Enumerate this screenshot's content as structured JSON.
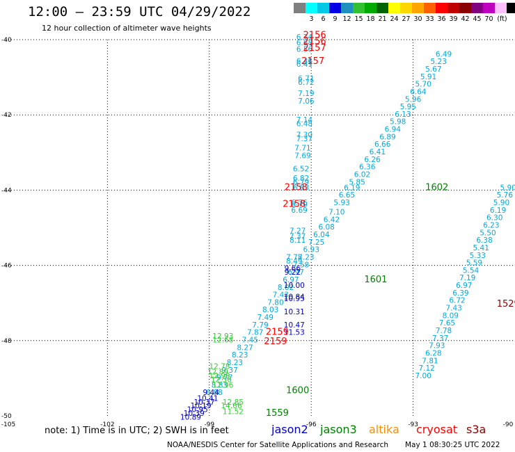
{
  "header": {
    "title": "12:00 – 23:59 UTC 04/29/2022",
    "subtitle": "12 hour collection of altimeter wave heights"
  },
  "legend": {
    "colors": [
      "#7f7f7f",
      "#00ffff",
      "#00c8e6",
      "#0000e6",
      "#1e90c0",
      "#30c030",
      "#00aa00",
      "#006400",
      "#ffff00",
      "#ffd700",
      "#ffa500",
      "#ff6000",
      "#ff0000",
      "#c00000",
      "#8b0000",
      "#800080",
      "#c000c0",
      "#ffc0ff",
      "#000000"
    ],
    "labels": [
      "3",
      "6",
      "9",
      "12",
      "15",
      "18",
      "21",
      "24",
      "27",
      "30",
      "33",
      "36",
      "39",
      "42",
      "45",
      "70"
    ],
    "unit": "(ft)"
  },
  "note_text": "note:  1) Time is in UTC;  2) SWH is in feet",
  "missions": [
    {
      "name": "jason2",
      "color": "#0000cc"
    },
    {
      "name": "jason3",
      "color": "#008000"
    },
    {
      "name": "altika",
      "color": "#ff8c00"
    },
    {
      "name": "cryosat",
      "color": "#ff0000"
    },
    {
      "name": "s3a",
      "color": "#8b0000"
    }
  ],
  "footer": {
    "credit": "NOAA/NESDIS Center for Satellite Applications and Research",
    "timestamp": "May  1 08:30:25 UTC 2022"
  },
  "chart_data": {
    "type": "scatter",
    "xlim": [
      -105,
      -90
    ],
    "ylim": [
      -50,
      -40
    ],
    "x_ticks": [
      "-105",
      "-102",
      "-99",
      "-96",
      "-93",
      "-90"
    ],
    "y_ticks": [
      "-40",
      "-42",
      "-44",
      "-46",
      "-48",
      "-50"
    ],
    "grid": true,
    "series": [
      {
        "color": "#00aadd",
        "points": [
          {
            "x": -96.2,
            "y": -40.0,
            "label": "6.74"
          },
          {
            "x": -96.2,
            "y": -40.15,
            "label": "6.68"
          },
          {
            "x": -96.2,
            "y": -40.32,
            "label": "6.56"
          },
          {
            "x": -96.2,
            "y": -40.64,
            "label": "6.46"
          },
          {
            "x": -96.2,
            "y": -40.72,
            "label": "6.41"
          },
          {
            "x": -96.15,
            "y": -41.1,
            "label": "6.71"
          },
          {
            "x": -96.15,
            "y": -41.2,
            "label": "6.72"
          },
          {
            "x": -96.15,
            "y": -41.5,
            "label": "7.19"
          },
          {
            "x": -96.15,
            "y": -41.7,
            "label": "7.06"
          },
          {
            "x": -96.2,
            "y": -42.2,
            "label": "7.14"
          },
          {
            "x": -96.2,
            "y": -42.3,
            "label": "6.48"
          },
          {
            "x": -96.2,
            "y": -42.6,
            "label": "7.30"
          },
          {
            "x": -96.2,
            "y": -42.7,
            "label": "7.37"
          },
          {
            "x": -96.25,
            "y": -42.95,
            "label": "7.71"
          },
          {
            "x": -96.25,
            "y": -43.15,
            "label": "7.69"
          },
          {
            "x": -96.3,
            "y": -43.5,
            "label": "6.52"
          },
          {
            "x": -96.3,
            "y": -43.75,
            "label": "6.82"
          },
          {
            "x": -96.3,
            "y": -43.85,
            "label": "6.79"
          },
          {
            "x": -96.3,
            "y": -44.0,
            "label": "6.83"
          },
          {
            "x": -96.35,
            "y": -44.4,
            "label": "6.76"
          },
          {
            "x": -96.35,
            "y": -44.45,
            "label": "6.70"
          },
          {
            "x": -96.35,
            "y": -44.6,
            "label": "6.69"
          },
          {
            "x": -96.4,
            "y": -45.15,
            "label": "7.27"
          },
          {
            "x": -96.4,
            "y": -45.3,
            "label": "7.37"
          },
          {
            "x": -96.4,
            "y": -45.4,
            "label": "8.11"
          },
          {
            "x": -96.5,
            "y": -45.85,
            "label": "7.78"
          },
          {
            "x": -96.5,
            "y": -45.95,
            "label": "8.49"
          },
          {
            "x": -95.1,
            "y": -44.4,
            "label": "5.93"
          },
          {
            "x": -94.95,
            "y": -44.2,
            "label": "6.65"
          },
          {
            "x": -94.8,
            "y": -44.0,
            "label": "6.19"
          },
          {
            "x": -94.65,
            "y": -43.85,
            "label": "5.85"
          },
          {
            "x": -94.5,
            "y": -43.65,
            "label": "6.02"
          },
          {
            "x": -94.35,
            "y": -43.45,
            "label": "6.36"
          },
          {
            "x": -94.2,
            "y": -43.25,
            "label": "6.26"
          },
          {
            "x": -94.05,
            "y": -43.05,
            "label": "6.41"
          },
          {
            "x": -93.9,
            "y": -42.85,
            "label": "6.66"
          },
          {
            "x": -93.75,
            "y": -42.65,
            "label": "6.89"
          },
          {
            "x": -93.6,
            "y": -42.45,
            "label": "6.94"
          },
          {
            "x": -93.45,
            "y": -42.25,
            "label": "5.98"
          },
          {
            "x": -93.3,
            "y": -42.05,
            "label": "6.13"
          },
          {
            "x": -93.15,
            "y": -41.85,
            "label": "5.95"
          },
          {
            "x": -93.0,
            "y": -41.65,
            "label": "5.96"
          },
          {
            "x": -92.85,
            "y": -41.45,
            "label": "6.64"
          },
          {
            "x": -92.7,
            "y": -41.25,
            "label": "5.70"
          },
          {
            "x": -92.55,
            "y": -41.05,
            "label": "5.91"
          },
          {
            "x": -92.4,
            "y": -40.85,
            "label": "5.67"
          },
          {
            "x": -92.25,
            "y": -40.65,
            "label": "5.23"
          },
          {
            "x": -92.1,
            "y": -40.45,
            "label": "6.49"
          },
          {
            "x": -95.25,
            "y": -44.65,
            "label": "7.10"
          },
          {
            "x": -95.4,
            "y": -44.85,
            "label": "6.42"
          },
          {
            "x": -95.55,
            "y": -45.05,
            "label": "6.08"
          },
          {
            "x": -95.7,
            "y": -45.25,
            "label": "6.04"
          },
          {
            "x": -95.85,
            "y": -45.45,
            "label": "7.25"
          },
          {
            "x": -96.0,
            "y": -45.65,
            "label": "6.93"
          },
          {
            "x": -96.15,
            "y": -45.85,
            "label": "7.23"
          },
          {
            "x": -96.3,
            "y": -46.05,
            "label": "7.58"
          },
          {
            "x": -96.45,
            "y": -46.25,
            "label": "6.97"
          },
          {
            "x": -96.6,
            "y": -46.45,
            "label": "6.97"
          },
          {
            "x": -96.75,
            "y": -46.65,
            "label": "8.02"
          },
          {
            "x": -96.9,
            "y": -46.85,
            "label": "7.43"
          },
          {
            "x": -97.05,
            "y": -47.05,
            "label": "7.80"
          },
          {
            "x": -97.2,
            "y": -47.25,
            "label": "8.03"
          },
          {
            "x": -97.35,
            "y": -47.45,
            "label": "7.49"
          },
          {
            "x": -97.5,
            "y": -47.65,
            "label": "7.79"
          },
          {
            "x": -97.65,
            "y": -47.85,
            "label": "7.87"
          },
          {
            "x": -97.8,
            "y": -48.05,
            "label": "7.45"
          },
          {
            "x": -97.95,
            "y": -48.25,
            "label": "8.27"
          },
          {
            "x": -98.1,
            "y": -48.45,
            "label": "8.23"
          },
          {
            "x": -98.25,
            "y": -48.65,
            "label": "8.23"
          },
          {
            "x": -98.4,
            "y": -48.85,
            "label": "9.37"
          },
          {
            "x": -98.55,
            "y": -49.05,
            "label": "9.77"
          },
          {
            "x": -98.7,
            "y": -49.25,
            "label": "8.83"
          },
          {
            "x": -98.85,
            "y": -49.45,
            "label": "8.88"
          },
          {
            "x": -90.2,
            "y": -44.0,
            "label": "5.90"
          },
          {
            "x": -90.3,
            "y": -44.2,
            "label": "5.76"
          },
          {
            "x": -90.4,
            "y": -44.4,
            "label": "5.90"
          },
          {
            "x": -90.5,
            "y": -44.6,
            "label": "6.19"
          },
          {
            "x": -90.6,
            "y": -44.8,
            "label": "6.30"
          },
          {
            "x": -90.7,
            "y": -45.0,
            "label": "6.23"
          },
          {
            "x": -90.8,
            "y": -45.2,
            "label": "5.50"
          },
          {
            "x": -90.9,
            "y": -45.4,
            "label": "6.38"
          },
          {
            "x": -91.0,
            "y": -45.6,
            "label": "5.41"
          },
          {
            "x": -91.1,
            "y": -45.8,
            "label": "5.33"
          },
          {
            "x": -91.2,
            "y": -46.0,
            "label": "5.59"
          },
          {
            "x": -91.3,
            "y": -46.2,
            "label": "5.54"
          },
          {
            "x": -91.4,
            "y": -46.4,
            "label": "7.19"
          },
          {
            "x": -91.5,
            "y": -46.6,
            "label": "6.97"
          },
          {
            "x": -91.6,
            "y": -46.8,
            "label": "6.39"
          },
          {
            "x": -91.7,
            "y": -47.0,
            "label": "6.72"
          },
          {
            "x": -91.8,
            "y": -47.2,
            "label": "7.43"
          },
          {
            "x": -91.9,
            "y": -47.4,
            "label": "8.09"
          },
          {
            "x": -92.0,
            "y": -47.6,
            "label": "7.65"
          },
          {
            "x": -92.1,
            "y": -47.8,
            "label": "7.78"
          },
          {
            "x": -92.2,
            "y": -48.0,
            "label": "7.37"
          },
          {
            "x": -92.3,
            "y": -48.2,
            "label": "7.93"
          },
          {
            "x": -92.4,
            "y": -48.4,
            "label": "6.28"
          },
          {
            "x": -92.5,
            "y": -48.6,
            "label": "7.81"
          },
          {
            "x": -92.6,
            "y": -48.8,
            "label": "7.12"
          },
          {
            "x": -92.7,
            "y": -49.0,
            "label": "7.00"
          }
        ]
      },
      {
        "color": "#0000cc",
        "points": [
          {
            "x": -96.55,
            "y": -46.15,
            "label": "9.66"
          },
          {
            "x": -96.55,
            "y": -46.25,
            "label": "9.22"
          },
          {
            "x": -96.5,
            "y": -46.6,
            "label": "10.00"
          },
          {
            "x": -96.5,
            "y": -46.9,
            "label": "10.84"
          },
          {
            "x": -96.5,
            "y": -46.95,
            "label": "10.95"
          },
          {
            "x": -96.5,
            "y": -47.3,
            "label": "10.31"
          },
          {
            "x": -96.5,
            "y": -47.65,
            "label": "10.47"
          },
          {
            "x": -96.5,
            "y": -47.85,
            "label": "11.53"
          },
          {
            "x": -98.95,
            "y": -49.45,
            "label": "9.44"
          },
          {
            "x": -99.05,
            "y": -49.6,
            "label": "10.41"
          },
          {
            "x": -99.15,
            "y": -49.7,
            "label": "10.37"
          },
          {
            "x": -99.25,
            "y": -49.8,
            "label": "10.19"
          },
          {
            "x": -99.35,
            "y": -49.9,
            "label": "10.95"
          },
          {
            "x": -99.45,
            "y": -50.0,
            "label": "10.39"
          },
          {
            "x": -99.55,
            "y": -50.1,
            "label": "10.89"
          }
        ]
      },
      {
        "color": "#33cc33",
        "points": [
          {
            "x": -98.6,
            "y": -47.95,
            "label": "12.93"
          },
          {
            "x": -98.6,
            "y": -48.05,
            "label": "12.68"
          },
          {
            "x": -98.7,
            "y": -48.75,
            "label": "12.78"
          },
          {
            "x": -98.75,
            "y": -48.9,
            "label": "12.89"
          },
          {
            "x": -98.7,
            "y": -49.0,
            "label": "12.99"
          },
          {
            "x": -98.65,
            "y": -49.1,
            "label": "12.56"
          },
          {
            "x": -98.6,
            "y": -49.25,
            "label": "12.96"
          },
          {
            "x": -98.3,
            "y": -49.7,
            "label": "12.85"
          },
          {
            "x": -98.35,
            "y": -49.8,
            "label": "14.66"
          },
          {
            "x": -98.3,
            "y": -49.95,
            "label": "11.52"
          }
        ]
      },
      {
        "color": "#ff0000",
        "points": [
          {
            "x": -95.9,
            "y": -39.95,
            "label": "2156"
          },
          {
            "x": -95.9,
            "y": -40.12,
            "label": "2156"
          },
          {
            "x": -95.9,
            "y": -40.3,
            "label": "2157"
          },
          {
            "x": -95.95,
            "y": -40.65,
            "label": "2157"
          },
          {
            "x": -96.45,
            "y": -44.0,
            "label": "2158"
          },
          {
            "x": -96.5,
            "y": -44.45,
            "label": "2158"
          },
          {
            "x": -97.0,
            "y": -47.85,
            "label": "2159"
          },
          {
            "x": -97.05,
            "y": -48.1,
            "label": "2159"
          }
        ]
      },
      {
        "color": "#008000",
        "points": [
          {
            "x": -92.3,
            "y": -44.0,
            "label": "1602"
          },
          {
            "x": -94.1,
            "y": -46.45,
            "label": "1601"
          },
          {
            "x": -96.4,
            "y": -49.4,
            "label": "1600"
          },
          {
            "x": -97.0,
            "y": -50.0,
            "label": "1559"
          },
          {
            "x": -89.8,
            "y": -41.2,
            "label": "1"
          }
        ]
      },
      {
        "color": "#8b0000",
        "points": [
          {
            "x": -90.2,
            "y": -47.1,
            "label": "1529"
          }
        ]
      }
    ]
  }
}
